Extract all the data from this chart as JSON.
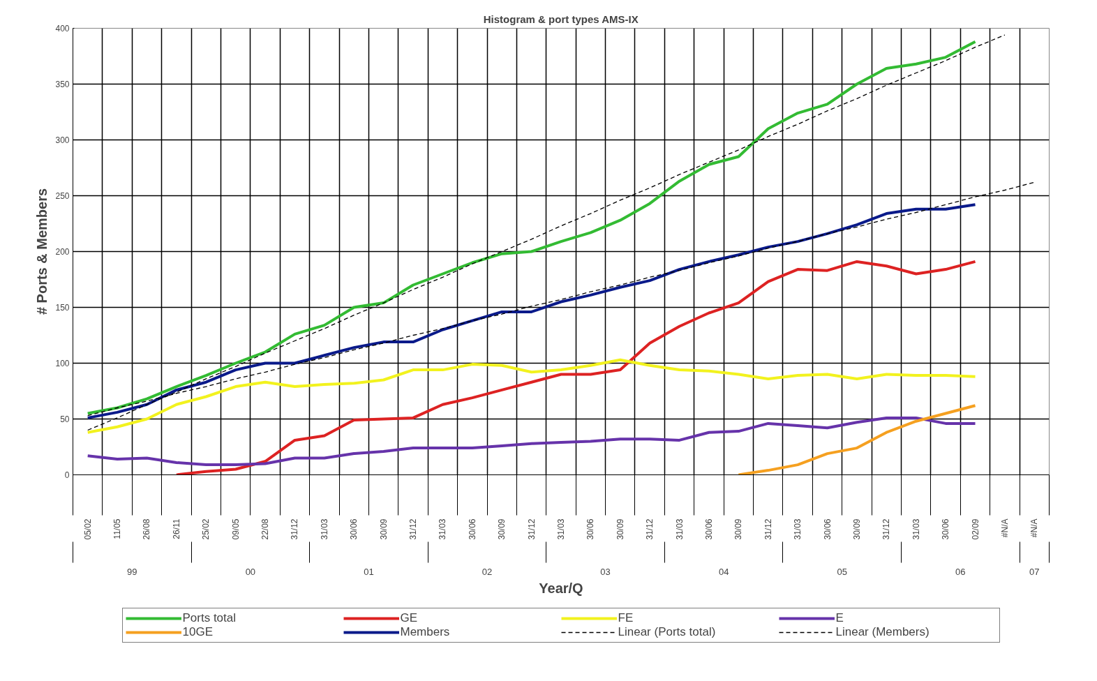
{
  "chart_data": {
    "type": "line",
    "title": "Histogram & port types AMS-IX",
    "xlabel": "Year/Q",
    "ylabel": "# Ports & Members",
    "categories": [
      "05/02",
      "11/05",
      "26/08",
      "26/11",
      "25/02",
      "09/05",
      "22/08",
      "31/12",
      "31/03",
      "30/06",
      "30/09",
      "31/12",
      "31/03",
      "30/06",
      "30/09",
      "31/12",
      "31/03",
      "30/06",
      "30/09",
      "31/12",
      "31/03",
      "30/06",
      "30/09",
      "31/12",
      "31/03",
      "30/06",
      "30/09",
      "31/12",
      "31/03",
      "30/06",
      "02/09",
      "#N/A",
      "#N/A"
    ],
    "series": [
      {
        "name": "Ports total",
        "color": "#33bb33",
        "values": [
          55,
          60,
          68,
          79,
          89,
          100,
          110,
          126,
          134,
          150,
          154,
          170,
          180,
          190,
          198,
          200,
          209,
          217,
          228,
          243,
          263,
          278,
          285,
          310,
          324,
          332,
          350,
          364,
          368,
          374,
          388,
          null,
          null
        ]
      },
      {
        "name": "GE",
        "color": "#dd2222",
        "values": [
          null,
          null,
          null,
          0,
          3,
          5,
          12,
          31,
          35,
          49,
          50,
          51,
          63,
          69,
          76,
          83,
          90,
          90,
          94,
          118,
          133,
          145,
          154,
          173,
          184,
          183,
          191,
          187,
          180,
          184,
          191,
          null,
          null
        ]
      },
      {
        "name": "FE",
        "color": "#f2f21e",
        "values": [
          38,
          43,
          50,
          63,
          70,
          79,
          83,
          79,
          81,
          82,
          85,
          94,
          94,
          99,
          98,
          92,
          94,
          98,
          103,
          98,
          94,
          93,
          90,
          86,
          89,
          90,
          86,
          90,
          89,
          89,
          88,
          null,
          null
        ]
      },
      {
        "name": "E",
        "color": "#6633aa",
        "values": [
          17,
          14,
          15,
          11,
          9,
          9,
          10,
          15,
          15,
          19,
          21,
          24,
          24,
          24,
          26,
          28,
          29,
          30,
          32,
          32,
          31,
          38,
          39,
          46,
          44,
          42,
          47,
          51,
          51,
          46,
          46,
          null,
          null
        ]
      },
      {
        "name": "10GE",
        "color": "#f5a020",
        "values": [
          null,
          null,
          null,
          null,
          null,
          null,
          null,
          null,
          null,
          null,
          null,
          null,
          null,
          null,
          null,
          null,
          null,
          null,
          null,
          null,
          null,
          null,
          0,
          4,
          9,
          19,
          24,
          38,
          48,
          55,
          62,
          null,
          null
        ]
      },
      {
        "name": "Members",
        "color": "#0a1a8a",
        "values": [
          51,
          56,
          63,
          76,
          83,
          94,
          100,
          100,
          107,
          114,
          119,
          119,
          130,
          138,
          146,
          146,
          155,
          161,
          168,
          174,
          184,
          191,
          197,
          204,
          209,
          216,
          224,
          234,
          238,
          238,
          242,
          null,
          null
        ]
      },
      {
        "name": "Linear (Ports total)",
        "color": "#000000",
        "line_style": "dashed",
        "values": [
          40,
          51,
          63,
          74,
          86,
          97,
          109,
          120,
          131,
          143,
          154,
          166,
          177,
          189,
          200,
          211,
          223,
          234,
          246,
          257,
          269,
          280,
          291,
          303,
          314,
          326,
          337,
          349,
          360,
          371,
          383,
          394,
          null
        ]
      },
      {
        "name": "Linear (Members)",
        "color": "#000000",
        "line_style": "dashed",
        "values": [
          53,
          60,
          66,
          73,
          79,
          86,
          92,
          99,
          105,
          112,
          118,
          125,
          131,
          138,
          144,
          151,
          157,
          164,
          170,
          177,
          183,
          190,
          196,
          203,
          209,
          216,
          222,
          229,
          235,
          242,
          249,
          255,
          262
        ]
      }
    ],
    "ylim": [
      0,
      400
    ],
    "yticks": [
      0,
      50,
      100,
      150,
      200,
      250,
      300,
      350,
      400
    ],
    "grid": true,
    "legend": "bottom",
    "annotations": [
      "99",
      "00",
      "01",
      "02",
      "03",
      "04",
      "05",
      "06",
      "07"
    ]
  }
}
